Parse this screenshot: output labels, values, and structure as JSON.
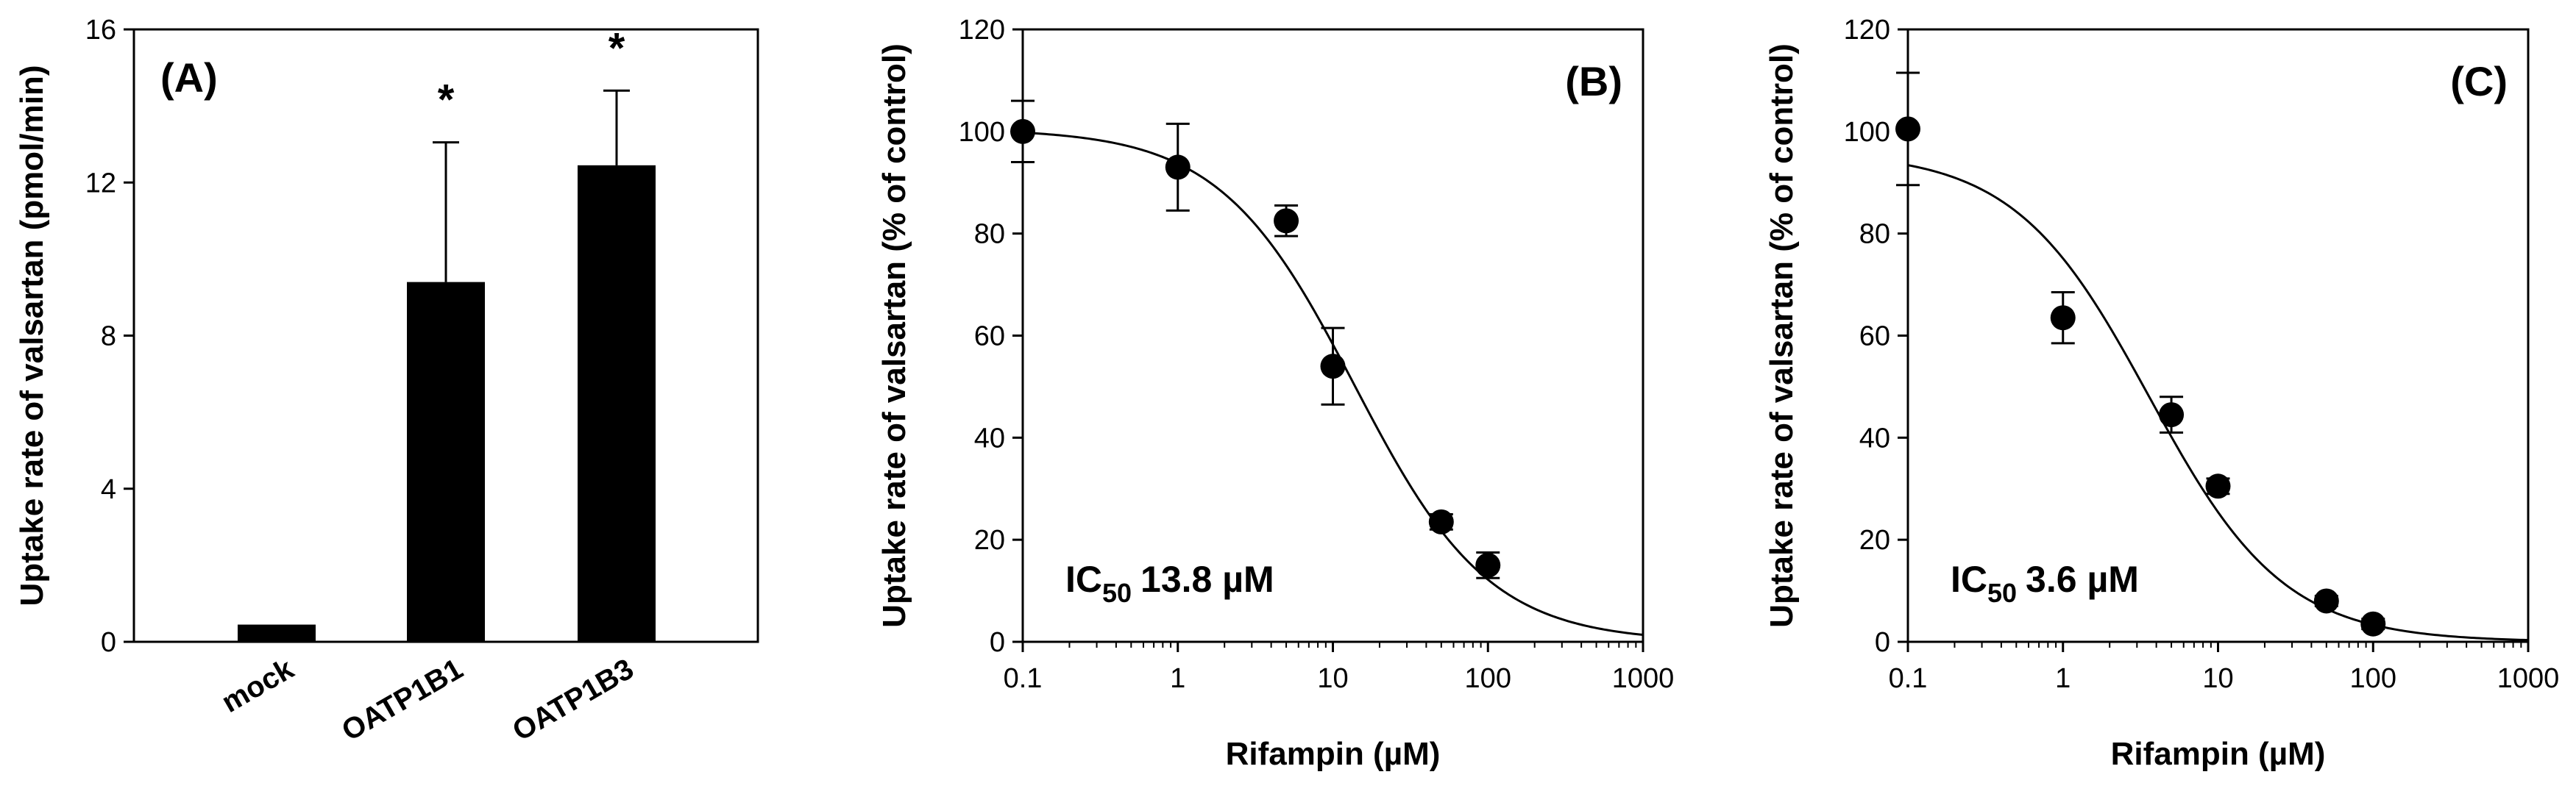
{
  "chart_data": [
    {
      "panel": "(A)",
      "type": "bar",
      "ylabel": "Uptake rate of valsartan (pmol/min)",
      "ylim": [
        0,
        16
      ],
      "yticks": [
        0,
        4,
        8,
        12,
        16
      ],
      "categories": [
        "mock",
        "OATP1B1",
        "OATP1B3"
      ],
      "values": [
        0.45,
        9.4,
        12.45
      ],
      "errors": [
        0.05,
        3.65,
        1.95
      ],
      "significance": [
        "",
        "*",
        "*"
      ],
      "bar_color": "#000000"
    },
    {
      "panel": "(B)",
      "type": "scatter",
      "xlabel": "Rifampin (µM)",
      "ylabel": "Uptake rate of valsartan (% of control)",
      "xscale": "log",
      "xlim": [
        0.1,
        1000
      ],
      "ylim": [
        0,
        120
      ],
      "xticks": [
        "0.1",
        "1",
        "10",
        "100",
        "1000"
      ],
      "yticks": [
        0,
        20,
        40,
        60,
        80,
        100,
        120
      ],
      "x": [
        0.1,
        1,
        5,
        10,
        50,
        100
      ],
      "y": [
        100,
        93,
        82.5,
        54,
        23.5,
        15
      ],
      "errors": [
        6,
        8.5,
        3,
        7.5,
        1.5,
        2.5
      ],
      "fit": {
        "ic50": 13.8,
        "top": 100.5,
        "hill": 1.0
      },
      "annotation": {
        "prefix": "IC",
        "sub": "50",
        "text": "13.8 µM"
      }
    },
    {
      "panel": "(C)",
      "type": "scatter",
      "xlabel": "Rifampin (µM)",
      "ylabel": "Uptake rate of valsartan (% of control)",
      "xscale": "log",
      "xlim": [
        0.1,
        1000
      ],
      "ylim": [
        0,
        120
      ],
      "xticks": [
        "0.1",
        "1",
        "10",
        "100",
        "1000"
      ],
      "yticks": [
        0,
        20,
        40,
        60,
        80,
        100,
        120
      ],
      "x": [
        0.1,
        1,
        5,
        10,
        50,
        100
      ],
      "y": [
        100.5,
        63.5,
        44.5,
        30.5,
        8,
        3.5
      ],
      "errors": [
        11,
        5,
        3.5,
        1.5,
        1,
        1
      ],
      "fit": {
        "ic50": 3.6,
        "top": 96,
        "hill": 1.0
      },
      "annotation": {
        "prefix": "IC",
        "sub": "50",
        "text": "3.6 µM"
      }
    }
  ]
}
